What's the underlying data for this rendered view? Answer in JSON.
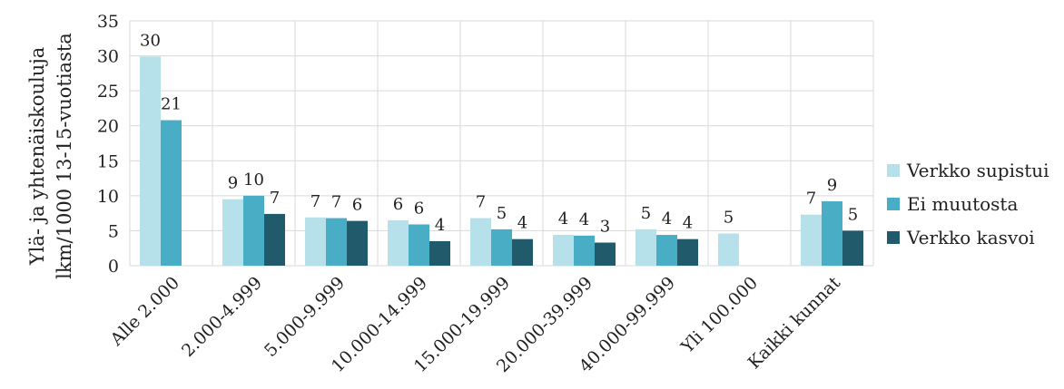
{
  "chart_data": {
    "type": "bar",
    "categories": [
      "Alle 2.000",
      "2.000-4.999",
      "5.000-9.999",
      "10.000-14.999",
      "15.000-19.999",
      "20.000-39.999",
      "40.000-99.999",
      "Yli 100.000",
      "Kaikki kunnat"
    ],
    "series": [
      {
        "name": "Verkko supistui",
        "color": "#b7e1ea",
        "values": [
          29.9,
          9.5,
          6.9,
          6.5,
          6.8,
          4.4,
          5.2,
          4.6,
          7.3
        ],
        "labels": [
          "30",
          "9",
          "7",
          "6",
          "7",
          "4",
          "5",
          "5",
          "7"
        ]
      },
      {
        "name": "Ei muutosta",
        "color": "#4aadc6",
        "values": [
          20.8,
          10.0,
          6.8,
          5.9,
          5.2,
          4.3,
          4.4,
          null,
          9.2
        ],
        "labels": [
          "21",
          "10",
          "7",
          "6",
          "5",
          "4",
          "4",
          "",
          "9"
        ]
      },
      {
        "name": "Verkko kasvoi",
        "color": "#215a6a",
        "values": [
          null,
          7.4,
          6.4,
          3.5,
          3.8,
          3.3,
          3.8,
          null,
          5.0
        ],
        "labels": [
          "",
          "7",
          "6",
          "4",
          "4",
          "3",
          "4",
          "",
          "5"
        ]
      }
    ],
    "title": "",
    "xlabel": "",
    "ylabel": [
      "Ylä- ja yhtenäiskouluja",
      "lkm/1000 13-15-vuotiasta"
    ],
    "ylim": [
      0,
      35
    ],
    "yticks": [
      0,
      5,
      10,
      15,
      20,
      25,
      30,
      35
    ],
    "grid": true,
    "legend_position": "right"
  }
}
